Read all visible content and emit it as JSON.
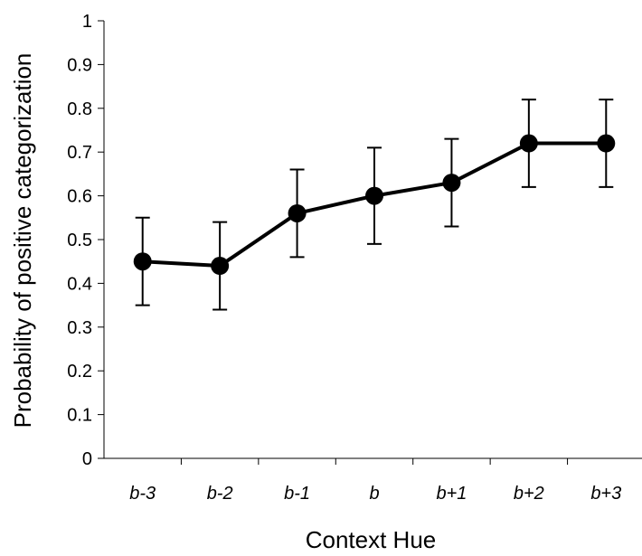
{
  "chart_data": {
    "type": "line",
    "categories": [
      "b-3",
      "b-2",
      "b-1",
      "b",
      "b+1",
      "b+2",
      "b+3"
    ],
    "series": [
      {
        "values": [
          0.45,
          0.44,
          0.56,
          0.6,
          0.63,
          0.72,
          0.72
        ],
        "error_low": [
          0.35,
          0.34,
          0.46,
          0.49,
          0.53,
          0.62,
          0.62
        ],
        "error_high": [
          0.55,
          0.54,
          0.66,
          0.71,
          0.73,
          0.82,
          0.82
        ]
      }
    ],
    "xlabel": "Context Hue",
    "ylabel": "Probability of positive categorization",
    "ylim": [
      0,
      1
    ],
    "yticks": [
      "0",
      "0.1",
      "0.2",
      "0.3",
      "0.4",
      "0.5",
      "0.6",
      "0.7",
      "0.8",
      "0.9",
      "1"
    ],
    "grid": false,
    "legend": "none",
    "colors": {
      "line": "#000000",
      "marker": "#000000"
    }
  }
}
